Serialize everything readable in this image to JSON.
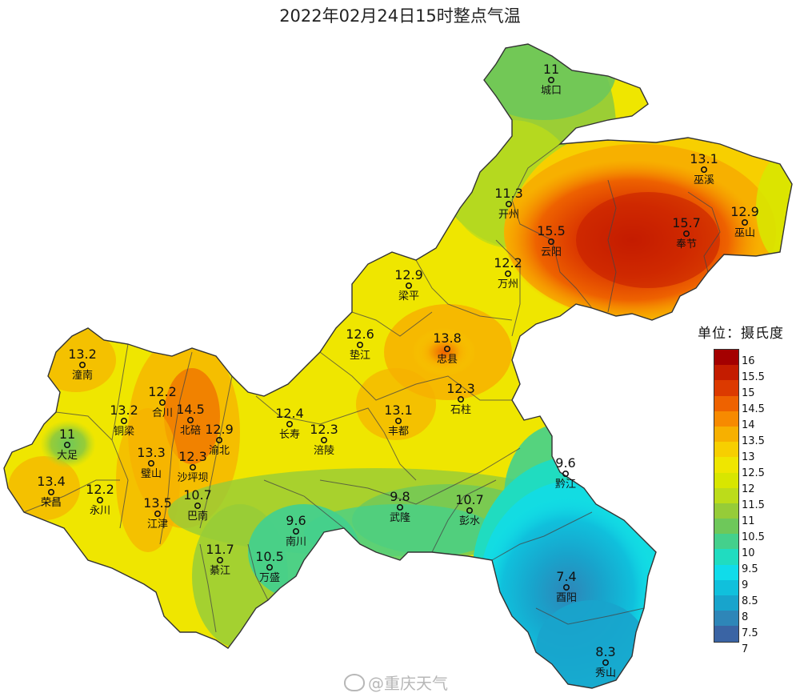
{
  "title": "2022年02月24日15时整点气温",
  "legend": {
    "title": "单位：摄氏度",
    "ticks": [
      "16",
      "15.5",
      "15",
      "14.5",
      "14",
      "13.5",
      "13",
      "12.5",
      "12",
      "11.5",
      "11",
      "10.5",
      "10",
      "9.5",
      "9",
      "8.5",
      "8",
      "7.5",
      "7"
    ],
    "colors": [
      "#a40000",
      "#c41c00",
      "#dc3a00",
      "#ee6200",
      "#f78a00",
      "#f7b000",
      "#f7cf00",
      "#efe600",
      "#d8e600",
      "#bcdc1a",
      "#96cc38",
      "#6ec85a",
      "#44d08c",
      "#20dcc0",
      "#10dcea",
      "#10c0dc",
      "#18a4cc",
      "#2e86b8",
      "#3a64a4"
    ]
  },
  "stations": [
    {
      "name": "城口",
      "value": "11"
    },
    {
      "name": "巫溪",
      "value": "13.1"
    },
    {
      "name": "开州",
      "value": "11.3"
    },
    {
      "name": "奉节",
      "value": "15.7"
    },
    {
      "name": "巫山",
      "value": "12.9"
    },
    {
      "name": "云阳",
      "value": "15.5"
    },
    {
      "name": "万州",
      "value": "12.2"
    },
    {
      "name": "梁平",
      "value": "12.9"
    },
    {
      "name": "垫江",
      "value": "12.6"
    },
    {
      "name": "忠县",
      "value": "13.8"
    },
    {
      "name": "石柱",
      "value": "12.3"
    },
    {
      "name": "潼南",
      "value": "13.2"
    },
    {
      "name": "合川",
      "value": "12.2"
    },
    {
      "name": "北碚",
      "value": "14.5"
    },
    {
      "name": "铜梁",
      "value": "13.2"
    },
    {
      "name": "渝北",
      "value": "12.9"
    },
    {
      "name": "长寿",
      "value": "12.4"
    },
    {
      "name": "涪陵",
      "value": "12.3"
    },
    {
      "name": "丰都",
      "value": "13.1"
    },
    {
      "name": "大足",
      "value": "11"
    },
    {
      "name": "璧山",
      "value": "13.3"
    },
    {
      "name": "沙坪坝",
      "value": "12.3"
    },
    {
      "name": "荣昌",
      "value": "13.4"
    },
    {
      "name": "永川",
      "value": "12.2"
    },
    {
      "name": "江津",
      "value": "13.5"
    },
    {
      "name": "巴南",
      "value": "10.7"
    },
    {
      "name": "武隆",
      "value": "9.8"
    },
    {
      "name": "彭水",
      "value": "10.7"
    },
    {
      "name": "黔江",
      "value": "9.6"
    },
    {
      "name": "南川",
      "value": "9.6"
    },
    {
      "name": "綦江",
      "value": "11.7"
    },
    {
      "name": "万盛",
      "value": "10.5"
    },
    {
      "name": "酉阳",
      "value": "7.4"
    },
    {
      "name": "秀山",
      "value": "8.3"
    }
  ],
  "watermark": "@重庆天气",
  "weibo_icon": "weibo-logo-icon"
}
